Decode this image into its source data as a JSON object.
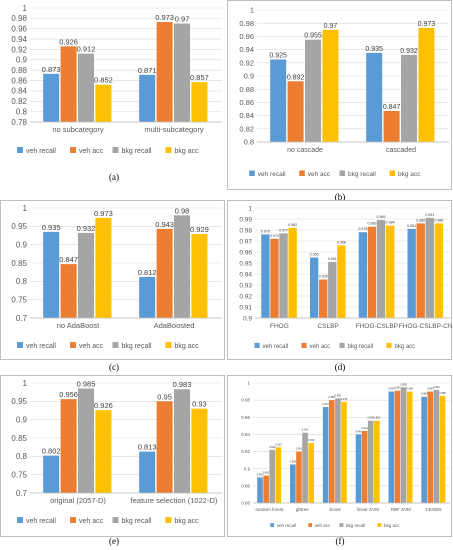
{
  "series_colors": [
    "#5b9bd5",
    "#ed7d31",
    "#a5a5a5",
    "#ffc000"
  ],
  "chart_data": [
    {
      "id": "a",
      "caption": "(a)",
      "type": "bar",
      "categories": [
        "no subcategory",
        "multi-subcategory"
      ],
      "series": [
        {
          "name": "veh recall",
          "values": [
            0.873,
            0.871
          ]
        },
        {
          "name": "veh acc",
          "values": [
            0.926,
            0.973
          ]
        },
        {
          "name": "bkg recall",
          "values": [
            0.912,
            0.97
          ]
        },
        {
          "name": "bkg acc",
          "values": [
            0.852,
            0.857
          ]
        }
      ],
      "labels": [
        [
          "0.873",
          "0.871"
        ],
        [
          "0.926",
          "0.973"
        ],
        [
          "0.912",
          "0.97"
        ],
        [
          "0.852",
          "0.857"
        ]
      ],
      "ylim": [
        0.78,
        1.0
      ],
      "yticks": [
        0.78,
        0.8,
        0.82,
        0.84,
        0.86,
        0.88,
        0.9,
        0.92,
        0.94,
        0.96,
        0.98,
        1
      ],
      "ytick_labels": [
        "0.78",
        "0.8",
        "0.82",
        "0.84",
        "0.86",
        "0.88",
        "0.9",
        "0.92",
        "0.94",
        "0.96",
        "0.98",
        "1"
      ],
      "grid": true,
      "legend": "bottom"
    },
    {
      "id": "b",
      "caption": "(b)",
      "type": "bar",
      "categories": [
        "no cascade",
        "cascaded"
      ],
      "series": [
        {
          "name": "veh recall",
          "values": [
            0.925,
            0.935
          ]
        },
        {
          "name": "veh acc",
          "values": [
            0.892,
            0.847
          ]
        },
        {
          "name": "bkg recall",
          "values": [
            0.955,
            0.932
          ]
        },
        {
          "name": "bkg acc",
          "values": [
            0.97,
            0.973
          ]
        }
      ],
      "labels": [
        [
          "0.925",
          "0.935"
        ],
        [
          "0.892",
          "0.847"
        ],
        [
          "0.955",
          "0.932"
        ],
        [
          "0.97",
          "0.973"
        ]
      ],
      "ylim": [
        0.8,
        1.0
      ],
      "yticks": [
        0.8,
        0.82,
        0.84,
        0.86,
        0.88,
        0.9,
        0.92,
        0.94,
        0.96,
        0.98,
        1
      ],
      "ytick_labels": [
        "0.8",
        "0.82",
        "0.84",
        "0.86",
        "0.88",
        "0.9",
        "0.92",
        "0.94",
        "0.96",
        "0.98",
        "1"
      ],
      "grid": true,
      "legend": "bottom"
    },
    {
      "id": "c",
      "caption": "(c)",
      "type": "bar",
      "categories": [
        "no AdaBoost",
        "AdaBoosted"
      ],
      "series": [
        {
          "name": "veh recall",
          "values": [
            0.935,
            0.812
          ]
        },
        {
          "name": "veh acc",
          "values": [
            0.847,
            0.943
          ]
        },
        {
          "name": "bkg recall",
          "values": [
            0.932,
            0.98
          ]
        },
        {
          "name": "bkg acc",
          "values": [
            0.973,
            0.929
          ]
        }
      ],
      "labels": [
        [
          "0.935",
          "0.812"
        ],
        [
          "0.847",
          "0.943"
        ],
        [
          "0.932",
          "0.98"
        ],
        [
          "0.973",
          "0.929"
        ]
      ],
      "ylim": [
        0.7,
        1.0
      ],
      "yticks": [
        0.7,
        0.75,
        0.8,
        0.85,
        0.9,
        0.95,
        1
      ],
      "ytick_labels": [
        "0.7",
        "0.75",
        "0.8",
        "0.85",
        "0.9",
        "0.95",
        "1"
      ],
      "grid": true,
      "legend": "bottom"
    },
    {
      "id": "d",
      "caption": "(d)",
      "type": "bar",
      "categories": [
        "FHOG",
        "CSLBP",
        "FHOG-CSLBP",
        "FHOG-CSLBP-CN"
      ],
      "series": [
        {
          "name": "veh recall",
          "values": [
            0.976,
            0.955,
            0.978,
            0.981
          ]
        },
        {
          "name": "veh acc",
          "values": [
            0.972,
            0.935,
            0.983,
            0.986
          ]
        },
        {
          "name": "bkg recall",
          "values": [
            0.977,
            0.951,
            0.989,
            0.991
          ]
        },
        {
          "name": "bkg acc",
          "values": [
            0.982,
            0.966,
            0.984,
            0.986
          ]
        }
      ],
      "labels": [
        [
          "0.976",
          "0.955",
          "0.978",
          "0.981"
        ],
        [
          "0.972",
          "0.935",
          "0.983",
          "0.986"
        ],
        [
          "0.977",
          "0.951",
          "0.989",
          "0.991"
        ],
        [
          "0.982",
          "0.966",
          "0.984",
          "0.986"
        ]
      ],
      "ylim": [
        0.9,
        1.0
      ],
      "yticks": [
        0.9,
        0.91,
        0.92,
        0.93,
        0.94,
        0.95,
        0.96,
        0.97,
        0.98,
        0.99,
        1
      ],
      "ytick_labels": [
        "0.9",
        "0.91",
        "0.92",
        "0.93",
        "0.94",
        "0.95",
        "0.96",
        "0.97",
        "0.98",
        "0.99",
        "1"
      ],
      "grid": true,
      "legend": "bottom"
    },
    {
      "id": "e",
      "caption": "(e)",
      "type": "bar",
      "categories": [
        "original (2057-D)",
        "feature selection (1022-D)"
      ],
      "series": [
        {
          "name": "veh recall",
          "values": [
            0.802,
            0.813
          ]
        },
        {
          "name": "veh acc",
          "values": [
            0.956,
            0.95
          ]
        },
        {
          "name": "bkg recall",
          "values": [
            0.985,
            0.983
          ]
        },
        {
          "name": "bkg acc",
          "values": [
            0.926,
            0.93
          ]
        }
      ],
      "labels": [
        [
          "0.802",
          "0.813"
        ],
        [
          "0.956",
          "0.95"
        ],
        [
          "0.985",
          "0.983"
        ],
        [
          "0.926",
          "0.93"
        ]
      ],
      "ylim": [
        0.7,
        1.0
      ],
      "yticks": [
        0.7,
        0.75,
        0.8,
        0.85,
        0.9,
        0.95,
        1
      ],
      "ytick_labels": [
        "0.7",
        "0.75",
        "0.8",
        "0.85",
        "0.9",
        "0.95",
        "1"
      ],
      "grid": true,
      "legend": "bottom"
    },
    {
      "id": "f",
      "caption": "(f)",
      "type": "bar",
      "categories": [
        "random forest",
        "gbtree",
        "boost",
        "linear SVM",
        "RBF SVM",
        "CESDD"
      ],
      "series": [
        {
          "name": "veh recall",
          "values": [
            0.89,
            0.905,
            0.972,
            0.94,
            0.99,
            0.984
          ]
        },
        {
          "name": "veh acc",
          "values": [
            0.892,
            0.92,
            0.98,
            0.944,
            0.991,
            0.99
          ]
        },
        {
          "name": "bkg recall",
          "values": [
            0.922,
            0.942,
            0.982,
            0.956,
            0.995,
            0.992
          ]
        },
        {
          "name": "bkg acc",
          "values": [
            0.925,
            0.93,
            0.978,
            0.956,
            0.99,
            0.985
          ]
        }
      ],
      "labels": [
        [
          "0.890",
          "0.905",
          "0.972",
          "0.940",
          "0.990",
          "0.984"
        ],
        [
          "0.892",
          "0.920",
          "0.980",
          "0.944",
          "0.991",
          "0.990"
        ],
        [
          "0.922",
          "0.942",
          "0.982",
          "0.956",
          "0.995",
          "0.992"
        ],
        [
          "0.925",
          "0.930",
          "0.978",
          "0.956",
          "0.990",
          "0.985"
        ]
      ],
      "ylim": [
        0.86,
        1.0
      ],
      "yticks": [
        0.86,
        0.88,
        0.9,
        0.92,
        0.94,
        0.96,
        0.98,
        1
      ],
      "ytick_labels": [
        "0.86",
        "0.88",
        "0.9",
        "0.92",
        "0.94",
        "0.96",
        "0.98",
        "1"
      ],
      "grid": true,
      "legend": "bottom"
    }
  ]
}
